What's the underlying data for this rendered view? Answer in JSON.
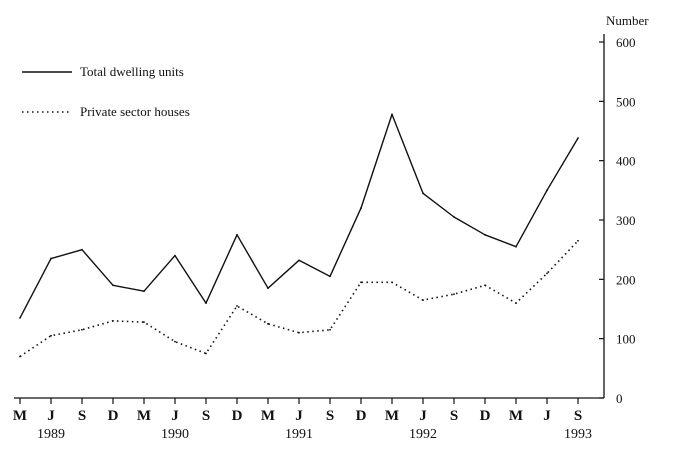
{
  "chart_data": {
    "type": "line",
    "title": "",
    "xlabel": "",
    "ylabel": "Number",
    "ylim": [
      0,
      600
    ],
    "yticks": [
      0,
      100,
      200,
      300,
      400,
      500,
      600
    ],
    "categories": [
      "M",
      "J",
      "S",
      "D",
      "M",
      "J",
      "S",
      "D",
      "M",
      "J",
      "S",
      "D",
      "M",
      "J",
      "S",
      "D",
      "M",
      "J",
      "S"
    ],
    "years": [
      {
        "label": "1989",
        "index": 1
      },
      {
        "label": "1990",
        "index": 5
      },
      {
        "label": "1991",
        "index": 9
      },
      {
        "label": "1992",
        "index": 13
      },
      {
        "label": "1993",
        "index": 18
      }
    ],
    "series": [
      {
        "name": "Total dwelling units",
        "style": "solid",
        "color": "#111111",
        "values": [
          135,
          235,
          250,
          190,
          180,
          240,
          160,
          275,
          185,
          232,
          205,
          320,
          478,
          345,
          305,
          275,
          255,
          350,
          438
        ]
      },
      {
        "name": "Private sector houses",
        "style": "dotted",
        "color": "#111111",
        "values": [
          70,
          105,
          115,
          130,
          128,
          95,
          75,
          155,
          125,
          110,
          115,
          195,
          195,
          165,
          175,
          190,
          160,
          210,
          265
        ]
      }
    ],
    "grid": false,
    "legend_position": "top-left"
  }
}
